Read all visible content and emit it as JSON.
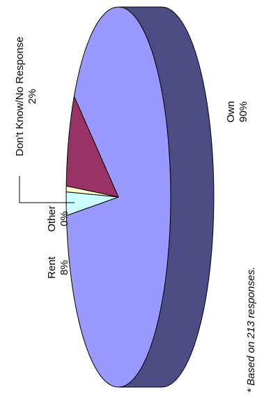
{
  "chart_data": {
    "type": "pie",
    "style": "3d-pie-rotated",
    "slices": [
      {
        "label": "Own",
        "pct_label": "90%",
        "value": 90,
        "color": "#9999ff",
        "side_color": "#4d4d85"
      },
      {
        "label": "Rent",
        "pct_label": "8%",
        "value": 8,
        "color": "#993366",
        "side_color": "#5c1f3d"
      },
      {
        "label": "Other",
        "pct_label": "0%",
        "value": 0.5,
        "color": "#ffffcc",
        "side_color": "#b3b38f"
      },
      {
        "label": "Don't Know/No Response",
        "pct_label": "2%",
        "value": 2,
        "color": "#ccffff",
        "side_color": "#8fb3b3"
      }
    ],
    "footnote": "* Based on 213 responses."
  }
}
